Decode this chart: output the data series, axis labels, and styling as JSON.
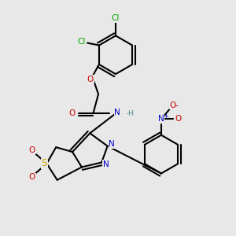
{
  "background_color": "#e8e8e8",
  "bond_color": "#000000",
  "atom_colors": {
    "C": "#000000",
    "H": "#000000",
    "N": "#0000cc",
    "O": "#cc0000",
    "S": "#ccaa00",
    "Cl": "#00aa00"
  },
  "title": ""
}
